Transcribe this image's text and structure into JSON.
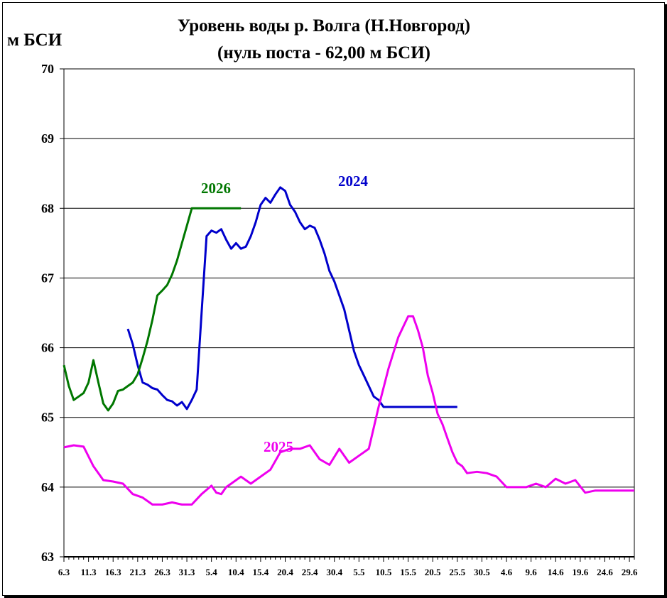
{
  "chart_data": {
    "type": "line",
    "title": "Уровень воды р. Волга (Н.Новгород)",
    "subtitle": "(нуль поста - 62,00 м БСИ)",
    "ylabel": "м БСИ",
    "xlabel": "",
    "ylim": [
      63,
      70
    ],
    "yticks": [
      "63",
      "64",
      "65",
      "66",
      "67",
      "68",
      "69",
      "70"
    ],
    "x_range_days": [
      0,
      116
    ],
    "grid": "horizontal",
    "legend": "inline labels",
    "x_tick_labels": [
      "6.3",
      "11.3",
      "16.3",
      "21.3",
      "26.3",
      "31.3",
      "5.4",
      "10.4",
      "15.4",
      "20.4",
      "25.4",
      "30.4",
      "5.5",
      "10.5",
      "15.5",
      "20.5",
      "25.5",
      "30.5",
      "4.6",
      "9.6",
      "14.6",
      "19.6",
      "24.6",
      "29.6"
    ],
    "series": [
      {
        "name": "2024",
        "color": "#0000CC",
        "x": [
          13,
          14,
          15,
          16,
          17,
          18,
          19,
          20,
          21,
          22,
          23,
          24,
          25,
          26,
          27,
          28,
          29,
          30,
          31,
          32,
          33,
          34,
          35,
          36,
          37,
          38,
          39,
          40,
          41,
          42,
          43,
          44,
          45,
          46,
          47,
          48,
          49,
          50,
          51,
          52,
          53,
          54,
          55,
          56,
          57,
          58,
          59,
          60,
          61,
          62,
          63,
          64,
          65,
          66,
          67,
          68,
          69,
          70,
          71,
          72,
          73,
          74,
          75,
          76,
          77,
          78,
          79,
          80
        ],
        "values": [
          66.27,
          66.05,
          65.75,
          65.5,
          65.47,
          65.42,
          65.4,
          65.32,
          65.25,
          65.23,
          65.17,
          65.22,
          65.12,
          65.25,
          65.4,
          66.5,
          67.6,
          67.68,
          67.65,
          67.7,
          67.55,
          67.42,
          67.5,
          67.42,
          67.45,
          67.6,
          67.8,
          68.05,
          68.15,
          68.08,
          68.2,
          68.3,
          68.25,
          68.05,
          67.95,
          67.8,
          67.7,
          67.75,
          67.72,
          67.55,
          67.35,
          67.1,
          66.95,
          66.75,
          66.55,
          66.25,
          65.95,
          65.75,
          65.6,
          65.45,
          65.3,
          65.25,
          65.15,
          65.15,
          65.15,
          65.15,
          65.15,
          65.15,
          65.15,
          65.15,
          65.15,
          65.15,
          65.15,
          65.15,
          65.15,
          65.15,
          65.15,
          65.15
        ]
      },
      {
        "name": "2025",
        "color": "#EE00EE",
        "x": [
          0,
          2,
          4,
          6,
          8,
          10,
          12,
          14,
          16,
          18,
          20,
          22,
          24,
          26,
          28,
          30,
          31,
          32,
          33,
          34,
          36,
          38,
          40,
          42,
          44,
          46,
          48,
          50,
          52,
          54,
          56,
          58,
          60,
          62,
          64,
          66,
          68,
          70,
          71,
          72,
          73,
          74,
          75,
          76,
          77,
          78,
          79,
          80,
          81,
          82,
          84,
          86,
          88,
          90,
          92,
          94,
          96,
          98,
          100,
          102,
          104,
          106,
          108,
          110,
          112,
          114,
          116
        ],
        "values": [
          64.57,
          64.6,
          64.58,
          64.3,
          64.1,
          64.08,
          64.05,
          63.9,
          63.85,
          63.75,
          63.75,
          63.78,
          63.75,
          63.75,
          63.9,
          64.02,
          63.92,
          63.9,
          64.0,
          64.05,
          64.15,
          64.05,
          64.15,
          64.25,
          64.5,
          64.55,
          64.55,
          64.6,
          64.4,
          64.32,
          64.55,
          64.35,
          64.45,
          64.55,
          65.15,
          65.7,
          66.15,
          66.45,
          66.45,
          66.25,
          66.0,
          65.6,
          65.35,
          65.05,
          64.9,
          64.7,
          64.5,
          64.35,
          64.3,
          64.2,
          64.22,
          64.2,
          64.15,
          64.0,
          64.0,
          64.0,
          64.05,
          64.0,
          64.12,
          64.05,
          64.1,
          63.92,
          63.95,
          63.95,
          63.95,
          63.95,
          63.95
        ]
      },
      {
        "name": "2026",
        "color": "#007700",
        "x": [
          0,
          1,
          2,
          3,
          4,
          5,
          6,
          7,
          8,
          9,
          10,
          11,
          12,
          13,
          14,
          15,
          16,
          17,
          18,
          19,
          20,
          21,
          22,
          23,
          24,
          25,
          26,
          27,
          28,
          29,
          30,
          31,
          32,
          33,
          34,
          35,
          36
        ],
        "values": [
          65.75,
          65.45,
          65.25,
          65.3,
          65.35,
          65.5,
          65.82,
          65.5,
          65.2,
          65.1,
          65.2,
          65.38,
          65.4,
          65.45,
          65.5,
          65.62,
          65.85,
          66.1,
          66.4,
          66.75,
          66.82,
          66.9,
          67.05,
          67.25,
          67.5,
          67.75,
          68.0,
          68.0,
          68.0,
          68.0,
          68.0,
          68.0,
          68.0,
          68.0,
          68.0,
          68.0,
          68.0
        ]
      }
    ]
  }
}
